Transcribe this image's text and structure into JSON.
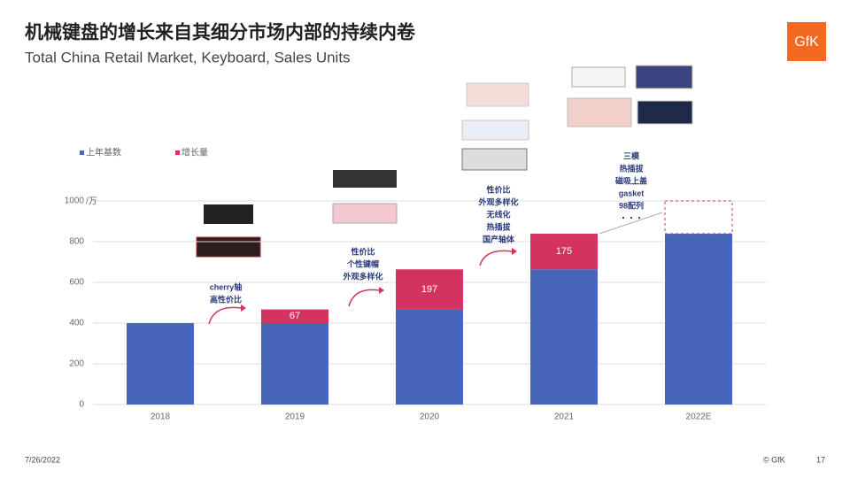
{
  "header": {
    "title": "机械键盘的增长来自其细分市场内部的持续内卷",
    "subtitle": "Total China Retail Market, Keyboard, Sales Units",
    "logo": "GfK"
  },
  "chart_data": {
    "type": "stacked_bar",
    "categories": [
      "2018",
      "2019",
      "2020",
      "2021",
      "2022E"
    ],
    "series": [
      {
        "name": "上年基数",
        "color": "#4667b9",
        "values": [
          400,
          400,
          467,
          664,
          839
        ]
      },
      {
        "name": "增长量",
        "color": "#d3345f",
        "values": [
          null,
          67,
          197,
          175,
          null
        ]
      }
    ],
    "ylim": [
      0,
      1000
    ],
    "yticks": [
      0,
      200,
      400,
      600,
      800,
      1000
    ],
    "y_unit": "/万",
    "grid": true,
    "annotations": [
      [
        "cherry轴",
        "高性价比"
      ],
      [
        "性价比",
        "个性键帽",
        "外观多样化"
      ],
      [
        "性价比",
        "外观多样化",
        "无线化",
        "热插拔",
        "国产轴体"
      ],
      [
        "三模",
        "热插拔",
        "磁吸上盖",
        "gasket",
        "98配列",
        "・・・"
      ]
    ]
  },
  "footer": {
    "date": "7/26/2022",
    "copyright": "© GfK",
    "page": "17"
  }
}
